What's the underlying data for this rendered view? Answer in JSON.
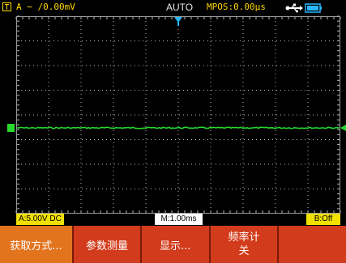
{
  "status_bar": {
    "trigger_info": "A ∼ ∕0.00mV",
    "mode": "AUTO",
    "mpos": "MPOS:0.00μs",
    "usb_icon": "usb-icon",
    "battery_icon": "battery-icon"
  },
  "bottom_status": {
    "channel_a": "A:5.00V DC",
    "timebase": "M:1.00ms",
    "channel_b": "B:Off"
  },
  "softkeys": {
    "acquire": "获取方式...",
    "measure": "参数测量",
    "display": "显示...",
    "counter_label": "频率计",
    "counter_value": "关",
    "blank": ""
  },
  "colors": {
    "trace": "#29d72f",
    "status_text": "#ffd700",
    "softkey_bg": "#d23b1b",
    "softkey_active": "#e2741e",
    "channel_badge": "#f0e000"
  }
}
